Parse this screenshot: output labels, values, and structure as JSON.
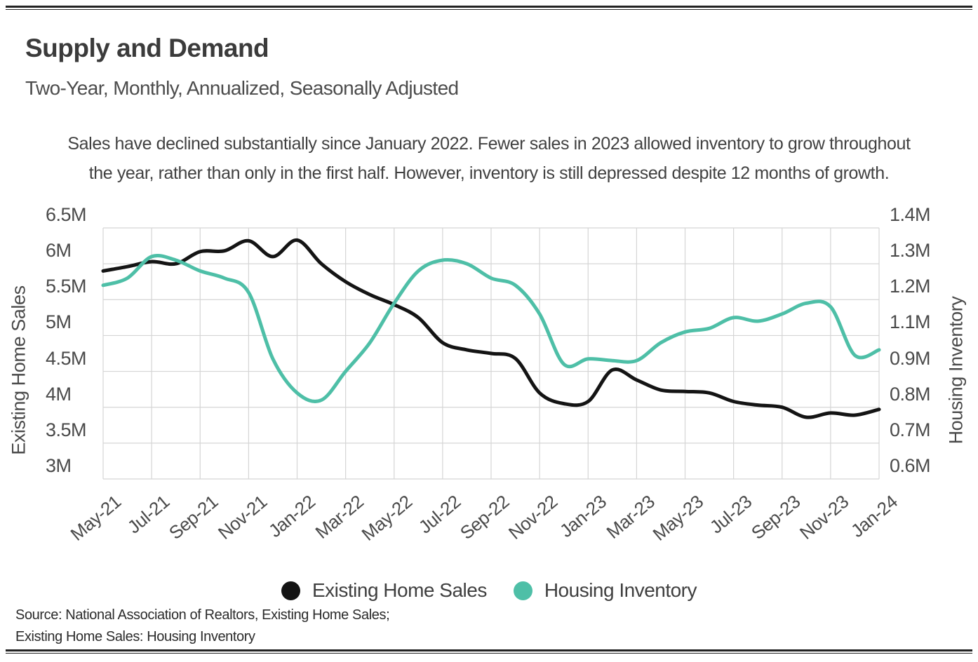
{
  "page": {
    "title": "Supply and Demand",
    "subtitle": "Two-Year, Monthly, Annualized, Seasonally Adjusted"
  },
  "description": {
    "line1": "Sales have declined substantially since January 2022. Fewer sales in 2023 allowed inventory to grow throughout",
    "line2": "the year, rather than only in the first half. However, inventory is still depressed despite 12 months of growth."
  },
  "legend": {
    "items": [
      {
        "label": "Existing Home Sales",
        "color": "#141414"
      },
      {
        "label": "Housing Inventory",
        "color": "#4EBFA7"
      }
    ]
  },
  "source": {
    "line1": "Source:  National Association of Realtors, Existing Home Sales;",
    "line2": "Existing Home Sales: Housing Inventory"
  },
  "colors": {
    "sales_line": "#141414",
    "inventory_line": "#4EBFA7",
    "gridline": "#D5D5D5"
  },
  "chart_data": {
    "type": "line",
    "title": "Supply and Demand",
    "subtitle": "Two-Year, Monthly, Annualized, Seasonally Adjusted",
    "grid": true,
    "legend_position": "bottom",
    "months": [
      "May-21",
      "Jun-21",
      "Jul-21",
      "Aug-21",
      "Sep-21",
      "Oct-21",
      "Nov-21",
      "Dec-21",
      "Jan-22",
      "Feb-22",
      "Mar-22",
      "Apr-22",
      "May-22",
      "Jun-22",
      "Jul-22",
      "Aug-22",
      "Sep-22",
      "Oct-22",
      "Nov-22",
      "Dec-22",
      "Jan-23",
      "Feb-23",
      "Mar-23",
      "Apr-23",
      "May-23",
      "Jun-23",
      "Jul-23",
      "Aug-23",
      "Sep-23",
      "Oct-23",
      "Nov-23",
      "Dec-23",
      "Jan-24"
    ],
    "x_tick_labels": [
      "May-21",
      "Jul-21",
      "Sep-21",
      "Nov-21",
      "Jan-22",
      "Mar-22",
      "May-22",
      "Jul-22",
      "Sep-22",
      "Nov-22",
      "Jan-23",
      "Mar-23",
      "May-23",
      "Jul-23",
      "Sep-23",
      "Nov-23",
      "Jan-24"
    ],
    "left_axis": {
      "label": "Existing Home Sales",
      "ticks": [
        "6.5M",
        "6M",
        "5.5M",
        "5M",
        "4.5M",
        "4M",
        "3.5M",
        "3M"
      ],
      "tick_values": [
        6.5,
        6.0,
        5.5,
        5.0,
        4.5,
        4.0,
        3.5,
        3.0
      ]
    },
    "right_axis": {
      "label": "Housing Inventory",
      "ticks": [
        "1.4M",
        "1.3M",
        "1.2M",
        "1.1M",
        "0.9M",
        "0.8M",
        "0.7M",
        "0.6M"
      ],
      "tick_values": [
        1.4,
        1.3,
        1.2,
        1.1,
        0.9,
        0.8,
        0.7,
        0.6
      ]
    },
    "series": [
      {
        "name": "Existing Home Sales",
        "axis": "left",
        "unit": "millions, annualized",
        "color": "#141414",
        "values": [
          5.9,
          5.96,
          6.03,
          6.0,
          6.17,
          6.18,
          6.32,
          6.1,
          6.33,
          6.0,
          5.75,
          5.57,
          5.43,
          5.25,
          4.9,
          4.8,
          4.75,
          4.68,
          4.2,
          4.05,
          4.08,
          4.52,
          4.38,
          4.24,
          4.22,
          4.2,
          4.08,
          4.03,
          4.0,
          3.86,
          3.92,
          3.89,
          3.97
        ]
      },
      {
        "name": "Housing Inventory",
        "axis": "right",
        "unit": "millions",
        "color": "#4EBFA7",
        "values": [
          1.24,
          1.26,
          1.32,
          1.31,
          1.28,
          1.26,
          1.22,
          0.97,
          0.84,
          0.82,
          0.9,
          1.06,
          1.19,
          1.28,
          1.31,
          1.3,
          1.26,
          1.24,
          1.16,
          0.94,
          0.97,
          0.96,
          0.96,
          1.06,
          1.11,
          1.12,
          1.15,
          1.14,
          1.16,
          1.19,
          1.18,
          0.99,
          1.02
        ]
      }
    ]
  }
}
